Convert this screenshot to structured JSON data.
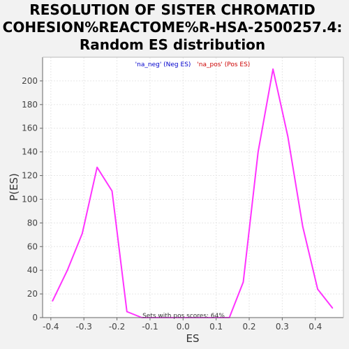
{
  "chart_data": {
    "type": "line",
    "title": [
      "RESOLUTION OF SISTER CHROMATID",
      "COHESION%REACTOME%R-HSA-2500257.4:",
      "Random ES distribution"
    ],
    "xlabel": "ES",
    "ylabel": "P(ES)",
    "xlim": [
      -0.425,
      0.485
    ],
    "ylim": [
      0,
      220
    ],
    "xticks": [
      -0.4,
      -0.3,
      -0.2,
      -0.1,
      0.0,
      0.1,
      0.2,
      0.3,
      0.4
    ],
    "xtick_labels": [
      "-0.4",
      "-0.3",
      "-0.2",
      "-0.1",
      "0.0",
      "0.1",
      "0.2",
      "0.3",
      "0.4"
    ],
    "yticks": [
      0,
      20,
      40,
      60,
      80,
      100,
      120,
      140,
      160,
      180,
      200
    ],
    "ytick_labels": [
      "0",
      "20",
      "40",
      "60",
      "80",
      "100",
      "120",
      "140",
      "160",
      "180",
      "200"
    ],
    "grid": true,
    "legend": {
      "placement": "top-center",
      "entries": [
        {
          "label": "'na_neg' (Neg ES)",
          "color": "#0000cc"
        },
        {
          "label": "'na_pos' (Pos ES)",
          "color": "#cc0000"
        }
      ]
    },
    "annotation": "Sets with pos scores: 64%",
    "series": [
      {
        "color": "#ff33ff",
        "x": [
          -0.395,
          -0.35,
          -0.305,
          -0.26,
          -0.215,
          -0.17,
          -0.125,
          -0.08,
          -0.035,
          0.01,
          0.055,
          0.1,
          0.14,
          0.182,
          0.227,
          0.272,
          0.317,
          0.362,
          0.407,
          0.452
        ],
        "y": [
          14,
          40,
          71,
          127,
          107,
          5,
          0,
          0,
          0,
          0,
          0,
          0,
          0,
          30,
          140,
          210,
          153,
          77,
          24,
          8
        ]
      }
    ]
  },
  "colors": {
    "background": "#f2f2f2",
    "plot_background": "#ffffff",
    "grid": "#e6e6e6",
    "line": "#ff33ff",
    "axis": "#666666"
  }
}
